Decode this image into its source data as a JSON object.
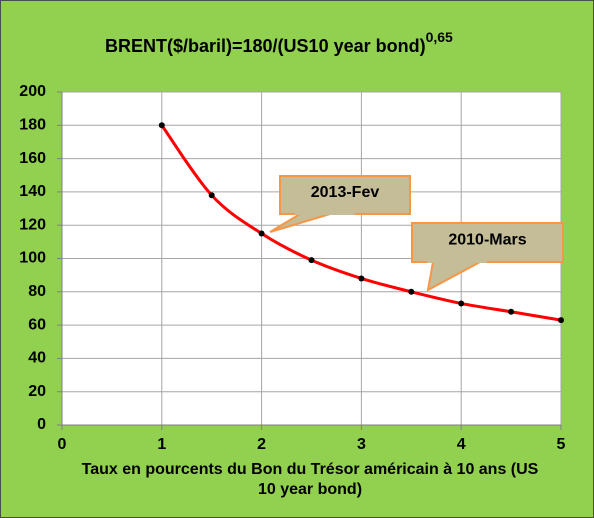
{
  "chart_data": {
    "type": "line",
    "title": "BRENT($/baril)=180/(US10 year bond)",
    "title_exponent": "0,65",
    "xlabel": "Taux en pourcents du Bon du Trésor américain à 10 ans (US 10 year bond)",
    "x": [
      1,
      1.5,
      2,
      2.5,
      3,
      3.5,
      4,
      4.5,
      5
    ],
    "series": [
      {
        "color": "#ff0000",
        "values": [
          180,
          138,
          115,
          99,
          88,
          80,
          73,
          68,
          63
        ]
      }
    ],
    "xlim": [
      0,
      5
    ],
    "xticks": [
      0,
      1,
      2,
      3,
      4,
      5
    ],
    "ylim": [
      0,
      200
    ],
    "yticks": [
      0,
      20,
      40,
      60,
      80,
      100,
      120,
      140,
      160,
      180,
      200
    ],
    "grid": true,
    "annotations": [
      "2013-Fev",
      "2010-Mars"
    ]
  }
}
